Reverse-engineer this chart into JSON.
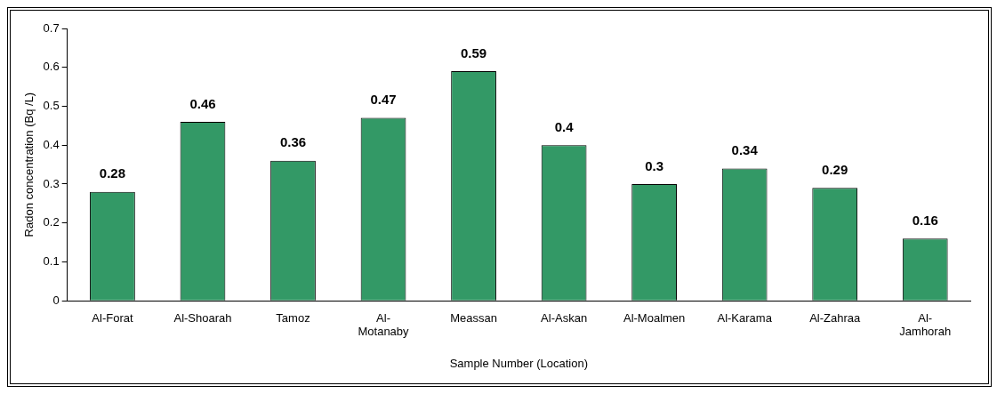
{
  "chart_data": {
    "type": "bar",
    "xlabel": "Sample Number (Location)",
    "ylabel": "Radon concentration (Bq /L)",
    "categories": [
      "Al-Forat",
      "Al-Shoarah",
      "Tamoz",
      "Al-Motanaby",
      "Meassan",
      "Al-Askan",
      "Al-Moalmen",
      "Al-Karama",
      "Al-Zahraa",
      "Al-Jamhorah"
    ],
    "values": [
      0.28,
      0.46,
      0.36,
      0.47,
      0.59,
      0.4,
      0.3,
      0.34,
      0.29,
      0.16
    ],
    "color": "#339966",
    "ylim": [
      0,
      0.7
    ],
    "yticks": [
      0,
      0.1,
      0.2,
      0.3,
      0.4,
      0.5,
      0.6,
      0.7
    ],
    "grid": false,
    "legend": false,
    "data_labels": true
  }
}
